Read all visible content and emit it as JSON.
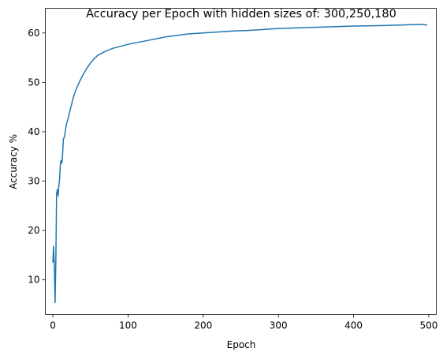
{
  "chart_data": {
    "type": "line",
    "title": "Accuracy per Epoch with hidden sizes of: 300,250,180",
    "xlabel": "Epoch",
    "ylabel": "Accuracy %",
    "xlim": [
      -10,
      510
    ],
    "ylim": [
      3,
      65
    ],
    "xticks": [
      0,
      100,
      200,
      300,
      400,
      500
    ],
    "yticks": [
      10,
      20,
      30,
      40,
      50,
      60
    ],
    "grid": false,
    "series": [
      {
        "color": "#1f77b4",
        "x": [
          0,
          1,
          2,
          3,
          4,
          5,
          6,
          7,
          8,
          9,
          10,
          11,
          12,
          13,
          14,
          15,
          16,
          17,
          18,
          19,
          20,
          22,
          24,
          26,
          28,
          30,
          33,
          36,
          40,
          45,
          50,
          55,
          60,
          70,
          80,
          90,
          100,
          110,
          120,
          130,
          140,
          150,
          160,
          170,
          180,
          190,
          200,
          220,
          240,
          260,
          280,
          300,
          320,
          340,
          360,
          380,
          400,
          420,
          440,
          460,
          480,
          490,
          498
        ],
        "y": [
          13.5,
          16.8,
          12.5,
          5.4,
          14.0,
          27.5,
          28.3,
          27.0,
          29.0,
          30.5,
          33.5,
          34.2,
          33.6,
          35.5,
          38.5,
          38.8,
          39.5,
          40.5,
          41.5,
          42.0,
          42.5,
          43.8,
          45.0,
          46.2,
          47.3,
          48.2,
          49.3,
          50.3,
          51.5,
          52.8,
          53.9,
          54.8,
          55.5,
          56.3,
          56.9,
          57.3,
          57.7,
          58.0,
          58.3,
          58.6,
          58.9,
          59.2,
          59.4,
          59.6,
          59.8,
          59.9,
          60.0,
          60.2,
          60.4,
          60.5,
          60.7,
          60.9,
          61.0,
          61.1,
          61.2,
          61.3,
          61.4,
          61.45,
          61.5,
          61.6,
          61.7,
          61.75,
          61.6
        ]
      }
    ]
  }
}
